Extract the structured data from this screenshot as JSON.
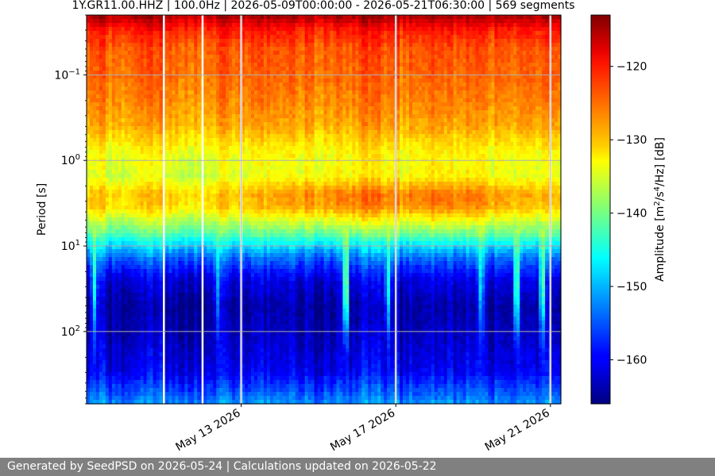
{
  "chart_data": {
    "type": "heatmap",
    "title": "1Y.GR11.00.HHZ | 100.0Hz | 2026-05-09T00:00:00 - 2026-05-21T06:30:00 | 569 segments",
    "ylabel": "Period [s]",
    "y_scale": "log",
    "y_inverted": true,
    "ylim": [
      0.02,
      700
    ],
    "y_ticks": [
      {
        "value": 0.1,
        "base": "10",
        "exp": "−1"
      },
      {
        "value": 1,
        "base": "10",
        "exp": "0"
      },
      {
        "value": 10,
        "base": "10",
        "exp": "1"
      },
      {
        "value": 100,
        "base": "10",
        "exp": "2"
      }
    ],
    "xlim": [
      "2026-05-09T00:00:00",
      "2026-05-21T06:30:00"
    ],
    "x_ticks": [
      {
        "value": "2026-05-13",
        "label": "May 13 2026"
      },
      {
        "value": "2026-05-17",
        "label": "May 17 2026"
      },
      {
        "value": "2026-05-21",
        "label": "May 21 2026"
      }
    ],
    "grid": true,
    "data_gaps": [
      "2026-05-11T00:00:00",
      "2026-05-12T00:00:00",
      "2026-05-13T00:00:00",
      "2026-05-17T00:00:00",
      "2026-05-21T00:00:00"
    ],
    "colorbar": {
      "label_main": "Amplitude [m",
      "label_sup1": "2",
      "label_mid": "/s",
      "label_sup2": "4",
      "label_end": "/Hz] [dB]",
      "range": [
        -166,
        -113
      ],
      "ticks": [
        -120,
        -130,
        -140,
        -150,
        -160
      ],
      "colormap": "jet"
    },
    "amplitude_profile": {
      "periods": [
        0.02,
        0.03,
        0.05,
        0.1,
        0.2,
        0.4,
        0.8,
        1.5,
        2.5,
        3.5,
        5,
        7,
        10,
        15,
        25,
        50,
        100,
        300,
        700
      ],
      "db": [
        -115,
        -121,
        -124,
        -125,
        -126.5,
        -128.5,
        -133,
        -135,
        -130,
        -131,
        -136,
        -141,
        -148,
        -155,
        -161,
        -164,
        -163,
        -160,
        -152
      ]
    },
    "events": [
      {
        "date": "2026-05-09T05:00:00",
        "strength": 0.6
      },
      {
        "date": "2026-05-12T09:00:00",
        "strength": 0.4
      },
      {
        "date": "2026-05-15T17:00:00",
        "strength": 1.0
      },
      {
        "date": "2026-05-16T19:00:00",
        "strength": 0.6
      },
      {
        "date": "2026-05-19T05:00:00",
        "strength": 0.5
      },
      {
        "date": "2026-05-20T03:00:00",
        "strength": 0.9
      },
      {
        "date": "2026-05-20T19:00:00",
        "strength": 0.8
      }
    ],
    "microseism_strong": [
      "2026-05-15T12:00:00",
      "2026-05-18T12:00:00"
    ]
  },
  "footer": {
    "text": "Generated by SeedPSD on 2026-05-24 | Calculations updated on 2026-05-22"
  },
  "colors": {
    "footer_bg": "#808080",
    "grid": "#b0b0b0",
    "gap": "#ffffff"
  }
}
